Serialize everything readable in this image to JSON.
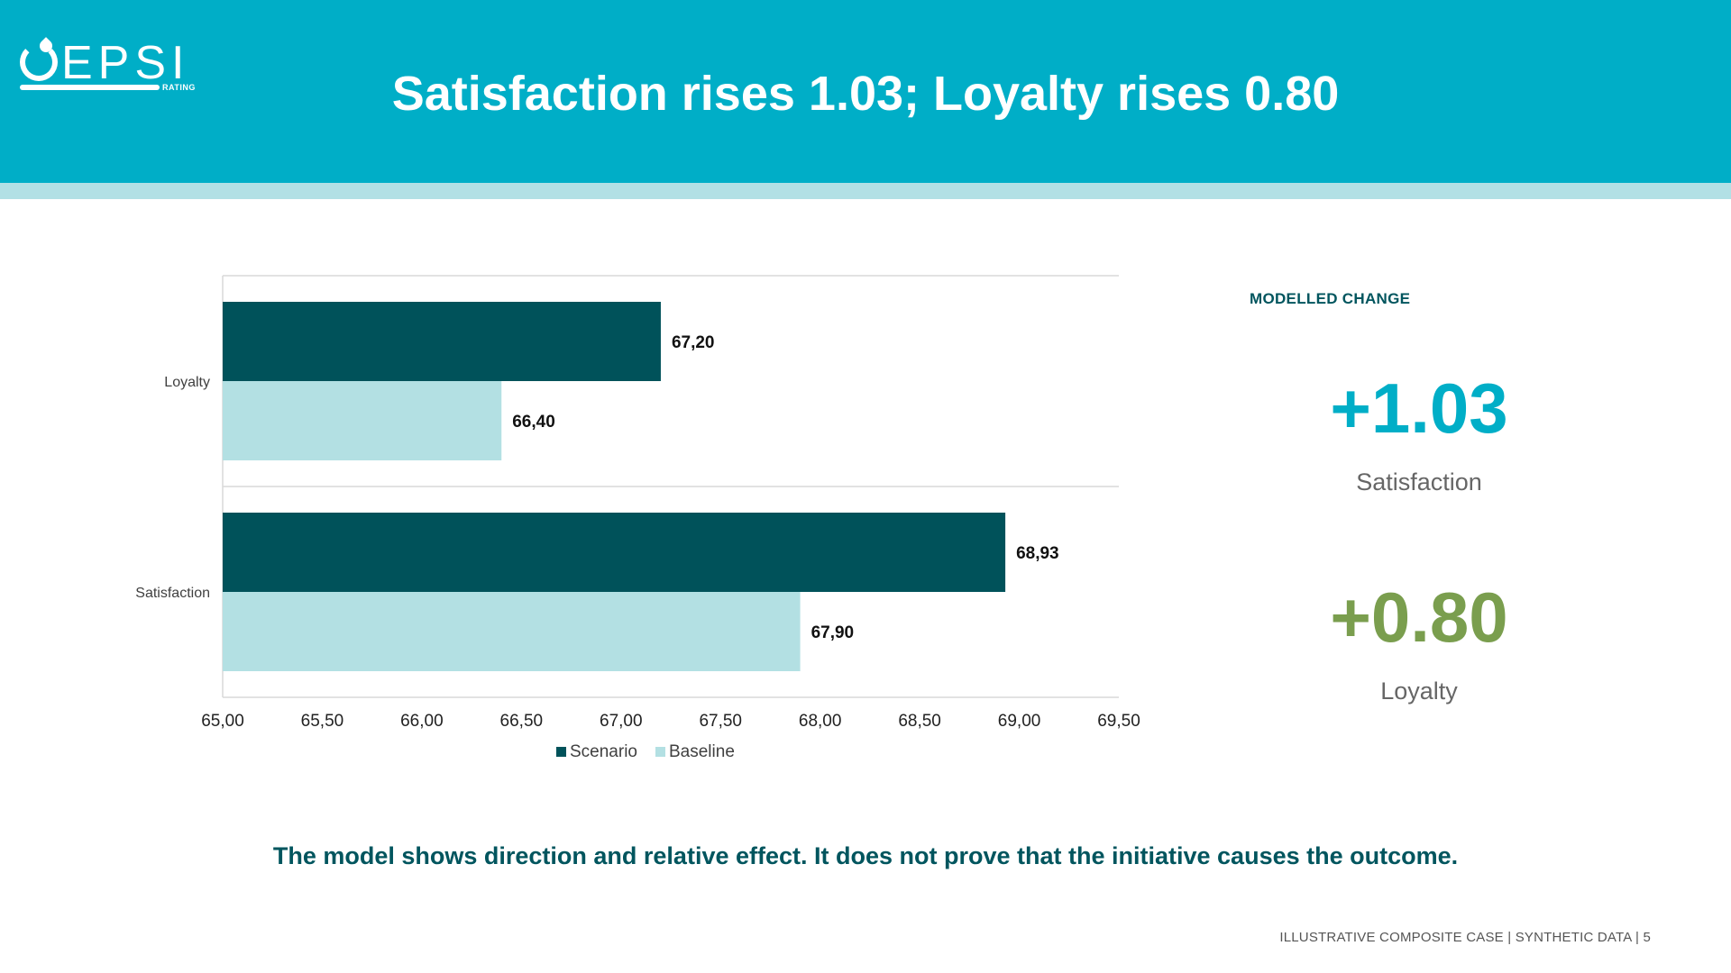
{
  "header": {
    "title": "Satisfaction rises 1.03; Loyalty rises 0.80",
    "logo_text": "EPSI",
    "logo_subtext": "RATING"
  },
  "colors": {
    "header_bg": "#00aec7",
    "stripe": "#b2e0e5",
    "scenario": "#00525a",
    "baseline": "#b3e0e3",
    "satisfaction_accent": "#00aec7",
    "loyalty_accent": "#7a9e4e",
    "dark_text": "#00555e"
  },
  "chart_data": {
    "type": "bar",
    "orientation": "horizontal",
    "categories": [
      "Loyalty",
      "Satisfaction"
    ],
    "series": [
      {
        "name": "Scenario",
        "values": [
          67.2,
          68.93
        ],
        "labels": [
          "67,20",
          "68,93"
        ]
      },
      {
        "name": "Baseline",
        "values": [
          66.4,
          67.9
        ],
        "labels": [
          "66,40",
          "67,90"
        ]
      }
    ],
    "xlim": [
      65,
      69.5
    ],
    "x_ticks": [
      65,
      65.5,
      66,
      66.5,
      67,
      67.5,
      68,
      68.5,
      69,
      69.5
    ],
    "x_tick_labels": [
      "65,00",
      "65,50",
      "66,00",
      "66,50",
      "67,00",
      "67,50",
      "68,00",
      "68,50",
      "69,00",
      "69,50"
    ],
    "legend_position": "bottom",
    "grid": false
  },
  "side_panel": {
    "heading": "MODELLED CHANGE",
    "metrics": [
      {
        "value": "+1.03",
        "label": "Satisfaction"
      },
      {
        "value": "+0.80",
        "label": "Loyalty"
      }
    ]
  },
  "takeaway": "The model shows direction and relative effect. It does not prove that the initiative causes the outcome.",
  "footer": "ILLUSTRATIVE COMPOSITE CASE | SYNTHETIC DATA | 5"
}
